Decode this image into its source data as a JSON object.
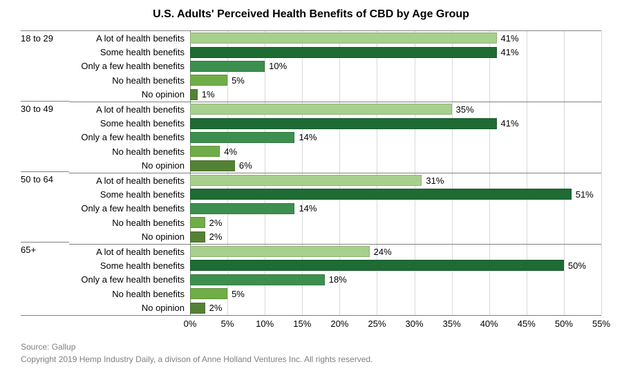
{
  "chart": {
    "type": "bar",
    "title": "U.S. Adults' Perceived Health Benefits of CBD by Age Group",
    "title_fontsize": 16,
    "background_color": "#ffffff",
    "grid_color": "#d9d9d9",
    "axis_color": "#808080",
    "label_fontsize": 13,
    "xmax": 55,
    "xtick_step": 5,
    "categories": [
      "A lot of health benefits",
      "Some health benefits",
      "Only a few health benefits",
      "No health benefits",
      "No opinion"
    ],
    "category_colors": [
      "#a8d08d",
      "#1e6b34",
      "#3d8f4f",
      "#70ad47",
      "#548235"
    ],
    "groups": [
      {
        "name": "18 to 29",
        "values": [
          41,
          41,
          10,
          5,
          1
        ]
      },
      {
        "name": "30 to 49",
        "values": [
          35,
          41,
          14,
          4,
          6
        ]
      },
      {
        "name": "50 to 64",
        "values": [
          31,
          51,
          14,
          2,
          2
        ]
      },
      {
        "name": "65+",
        "values": [
          24,
          50,
          18,
          5,
          2
        ]
      }
    ]
  },
  "footer": {
    "source": "Source: Gallup",
    "copyright": "Copyright 2019 Hemp Industry Daily, a divison of Anne Holland Ventures Inc. All rights reserved."
  }
}
